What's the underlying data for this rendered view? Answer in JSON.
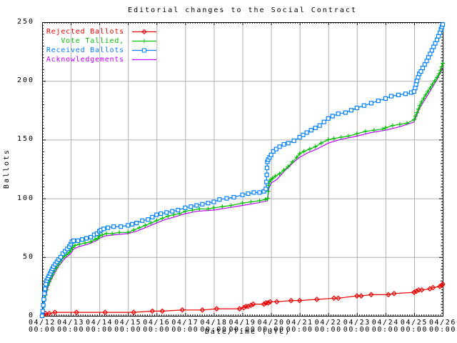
{
  "window": {
    "background": "#ffffff"
  },
  "chart_data": {
    "type": "line",
    "title": "Editorial changes to the Social Contract",
    "xlabel": "Date/Time (UTC)",
    "ylabel": "Ballots",
    "ylim": [
      0,
      250
    ],
    "y_ticks": [
      0,
      50,
      100,
      150,
      200,
      250
    ],
    "x_tick_labels_line1": [
      "04/12",
      "04/13",
      "04/14",
      "04/15",
      "04/16",
      "04/17",
      "04/18",
      "04/19",
      "04/20",
      "04/21",
      "04/22",
      "04/23",
      "04/24",
      "04/25",
      "04/26"
    ],
    "x_tick_labels_line2": "00:00",
    "xlim_days_from_first_tick": [
      0,
      14
    ],
    "grid": true,
    "grid_color": "#b0b0b0",
    "border_color": "#000000",
    "legend_position": "top-left-inside",
    "legend_order": [
      "Rejected Ballots",
      "Vote Tallied,",
      "Received Ballots",
      "Acknowledgements"
    ],
    "series": [
      {
        "name": "Rejected Ballots",
        "color": "#ee0000",
        "marker": "diamond",
        "points": [
          [
            0,
            0
          ],
          [
            0.06,
            1
          ],
          [
            0.12,
            2
          ],
          [
            0.25,
            2
          ],
          [
            0.45,
            3
          ],
          [
            1.2,
            3
          ],
          [
            2.2,
            3
          ],
          [
            3.2,
            3
          ],
          [
            3.85,
            4
          ],
          [
            4.2,
            4
          ],
          [
            4.9,
            5
          ],
          [
            5.6,
            5
          ],
          [
            6.1,
            6
          ],
          [
            6.9,
            6
          ],
          [
            7.05,
            7
          ],
          [
            7.12,
            8
          ],
          [
            7.2,
            8
          ],
          [
            7.3,
            9
          ],
          [
            7.38,
            10
          ],
          [
            7.75,
            10
          ],
          [
            7.82,
            11
          ],
          [
            7.9,
            11
          ],
          [
            7.97,
            12
          ],
          [
            8.2,
            12
          ],
          [
            8.7,
            13
          ],
          [
            9.0,
            13
          ],
          [
            9.6,
            14
          ],
          [
            10.2,
            15
          ],
          [
            10.35,
            15
          ],
          [
            11.0,
            17
          ],
          [
            11.15,
            17
          ],
          [
            11.5,
            18
          ],
          [
            12.1,
            18
          ],
          [
            12.3,
            19
          ],
          [
            13.0,
            20
          ],
          [
            13.08,
            21
          ],
          [
            13.16,
            22
          ],
          [
            13.27,
            22
          ],
          [
            13.55,
            23
          ],
          [
            13.66,
            24
          ],
          [
            13.9,
            25
          ],
          [
            13.97,
            26
          ],
          [
            14.0,
            27
          ]
        ]
      },
      {
        "name": "Vote Tallied,",
        "color": "#00c000",
        "marker": "plus",
        "points": [
          [
            0,
            0
          ],
          [
            0.03,
            4
          ],
          [
            0.06,
            9
          ],
          [
            0.09,
            14
          ],
          [
            0.12,
            18
          ],
          [
            0.16,
            22
          ],
          [
            0.2,
            26
          ],
          [
            0.25,
            29
          ],
          [
            0.3,
            32
          ],
          [
            0.36,
            35
          ],
          [
            0.42,
            38
          ],
          [
            0.5,
            41
          ],
          [
            0.58,
            44
          ],
          [
            0.66,
            47
          ],
          [
            0.75,
            50
          ],
          [
            0.85,
            52
          ],
          [
            0.95,
            54
          ],
          [
            1.0,
            56
          ],
          [
            1.06,
            58
          ],
          [
            1.15,
            60
          ],
          [
            1.3,
            61
          ],
          [
            1.5,
            62
          ],
          [
            1.7,
            63
          ],
          [
            1.85,
            65
          ],
          [
            1.95,
            66
          ],
          [
            2.0,
            68
          ],
          [
            2.1,
            69
          ],
          [
            2.25,
            70
          ],
          [
            2.45,
            70
          ],
          [
            2.7,
            71
          ],
          [
            3.0,
            71
          ],
          [
            3.2,
            73
          ],
          [
            3.4,
            75
          ],
          [
            3.6,
            77
          ],
          [
            3.8,
            79
          ],
          [
            4.0,
            81
          ],
          [
            4.2,
            83
          ],
          [
            4.4,
            85
          ],
          [
            4.6,
            86
          ],
          [
            4.8,
            87
          ],
          [
            5.0,
            89
          ],
          [
            5.25,
            90
          ],
          [
            5.5,
            91
          ],
          [
            5.8,
            91
          ],
          [
            6.0,
            92
          ],
          [
            6.3,
            93
          ],
          [
            6.6,
            94
          ],
          [
            7.0,
            96
          ],
          [
            7.3,
            97
          ],
          [
            7.6,
            98
          ],
          [
            7.8,
            99
          ],
          [
            7.88,
            100
          ],
          [
            7.9,
            106
          ],
          [
            7.92,
            111
          ],
          [
            7.95,
            114
          ],
          [
            8.0,
            116
          ],
          [
            8.05,
            117
          ],
          [
            8.15,
            119
          ],
          [
            8.3,
            121
          ],
          [
            8.45,
            124
          ],
          [
            8.6,
            127
          ],
          [
            8.75,
            131
          ],
          [
            8.9,
            135
          ],
          [
            9.0,
            138
          ],
          [
            9.15,
            140
          ],
          [
            9.35,
            142
          ],
          [
            9.55,
            144
          ],
          [
            9.75,
            147
          ],
          [
            10.0,
            150
          ],
          [
            10.2,
            151
          ],
          [
            10.45,
            152
          ],
          [
            10.7,
            153
          ],
          [
            11.0,
            155
          ],
          [
            11.3,
            157
          ],
          [
            11.6,
            158
          ],
          [
            11.9,
            159
          ],
          [
            12.0,
            160
          ],
          [
            12.25,
            162
          ],
          [
            12.5,
            163
          ],
          [
            12.75,
            164
          ],
          [
            13.0,
            167
          ],
          [
            13.05,
            170
          ],
          [
            13.1,
            173
          ],
          [
            13.15,
            176
          ],
          [
            13.2,
            179
          ],
          [
            13.26,
            182
          ],
          [
            13.33,
            185
          ],
          [
            13.4,
            188
          ],
          [
            13.48,
            191
          ],
          [
            13.56,
            194
          ],
          [
            13.64,
            197
          ],
          [
            13.72,
            200
          ],
          [
            13.8,
            203
          ],
          [
            13.87,
            206
          ],
          [
            13.92,
            209
          ],
          [
            13.96,
            212
          ],
          [
            14.0,
            215
          ]
        ]
      },
      {
        "name": "Received Ballots",
        "color": "#0080ff",
        "marker": "square",
        "points": [
          [
            0,
            0
          ],
          [
            0.02,
            4
          ],
          [
            0.04,
            9
          ],
          [
            0.06,
            14
          ],
          [
            0.08,
            19
          ],
          [
            0.1,
            23
          ],
          [
            0.13,
            27
          ],
          [
            0.16,
            30
          ],
          [
            0.2,
            32
          ],
          [
            0.24,
            34
          ],
          [
            0.28,
            36
          ],
          [
            0.32,
            38
          ],
          [
            0.36,
            40
          ],
          [
            0.4,
            42
          ],
          [
            0.46,
            44
          ],
          [
            0.52,
            46
          ],
          [
            0.58,
            48
          ],
          [
            0.65,
            50
          ],
          [
            0.72,
            53
          ],
          [
            0.8,
            55
          ],
          [
            0.88,
            57
          ],
          [
            0.95,
            59
          ],
          [
            1.0,
            61
          ],
          [
            1.04,
            63
          ],
          [
            1.1,
            64
          ],
          [
            1.25,
            64
          ],
          [
            1.4,
            65
          ],
          [
            1.55,
            66
          ],
          [
            1.7,
            67
          ],
          [
            1.82,
            69
          ],
          [
            1.92,
            70
          ],
          [
            2.0,
            72
          ],
          [
            2.06,
            73
          ],
          [
            2.15,
            74
          ],
          [
            2.3,
            75
          ],
          [
            2.5,
            76
          ],
          [
            2.75,
            76
          ],
          [
            3.0,
            77
          ],
          [
            3.15,
            78
          ],
          [
            3.3,
            79
          ],
          [
            3.5,
            81
          ],
          [
            3.7,
            82
          ],
          [
            3.85,
            84
          ],
          [
            4.0,
            86
          ],
          [
            4.15,
            87
          ],
          [
            4.35,
            88
          ],
          [
            4.55,
            89
          ],
          [
            4.75,
            90
          ],
          [
            5.0,
            92
          ],
          [
            5.2,
            93
          ],
          [
            5.4,
            94
          ],
          [
            5.6,
            95
          ],
          [
            5.8,
            96
          ],
          [
            6.0,
            97
          ],
          [
            6.2,
            99
          ],
          [
            6.45,
            100
          ],
          [
            6.7,
            101
          ],
          [
            7.0,
            103
          ],
          [
            7.2,
            104
          ],
          [
            7.4,
            105
          ],
          [
            7.6,
            105
          ],
          [
            7.75,
            106
          ],
          [
            7.82,
            108
          ],
          [
            7.84,
            114
          ],
          [
            7.85,
            120
          ],
          [
            7.86,
            126
          ],
          [
            7.87,
            131
          ],
          [
            7.9,
            133
          ],
          [
            7.95,
            135
          ],
          [
            8.0,
            137
          ],
          [
            8.08,
            140
          ],
          [
            8.18,
            142
          ],
          [
            8.3,
            144
          ],
          [
            8.45,
            146
          ],
          [
            8.6,
            147
          ],
          [
            8.8,
            149
          ],
          [
            9.0,
            152
          ],
          [
            9.12,
            154
          ],
          [
            9.25,
            156
          ],
          [
            9.4,
            158
          ],
          [
            9.55,
            160
          ],
          [
            9.7,
            162
          ],
          [
            9.85,
            165
          ],
          [
            10.0,
            168
          ],
          [
            10.15,
            170
          ],
          [
            10.35,
            172
          ],
          [
            10.6,
            173
          ],
          [
            10.8,
            175
          ],
          [
            11.0,
            177
          ],
          [
            11.25,
            179
          ],
          [
            11.5,
            181
          ],
          [
            11.75,
            183
          ],
          [
            12.0,
            185
          ],
          [
            12.2,
            187
          ],
          [
            12.45,
            188
          ],
          [
            12.7,
            189
          ],
          [
            12.9,
            190
          ],
          [
            13.0,
            191
          ],
          [
            13.04,
            194
          ],
          [
            13.07,
            197
          ],
          [
            13.1,
            200
          ],
          [
            13.14,
            203
          ],
          [
            13.18,
            206
          ],
          [
            13.24,
            208
          ],
          [
            13.3,
            211
          ],
          [
            13.37,
            214
          ],
          [
            13.44,
            217
          ],
          [
            13.5,
            220
          ],
          [
            13.56,
            223
          ],
          [
            13.62,
            226
          ],
          [
            13.68,
            229
          ],
          [
            13.74,
            232
          ],
          [
            13.8,
            235
          ],
          [
            13.85,
            238
          ],
          [
            13.9,
            241
          ],
          [
            13.94,
            244
          ],
          [
            13.97,
            246
          ],
          [
            14.0,
            248
          ]
        ]
      },
      {
        "name": "Acknowledgements",
        "color": "#c000ff",
        "marker": "none",
        "points": [
          [
            0,
            0
          ],
          [
            0.05,
            6
          ],
          [
            0.1,
            14
          ],
          [
            0.2,
            24
          ],
          [
            0.3,
            30
          ],
          [
            0.45,
            37
          ],
          [
            0.6,
            43
          ],
          [
            0.8,
            49
          ],
          [
            1.0,
            53
          ],
          [
            1.1,
            57
          ],
          [
            1.3,
            59
          ],
          [
            1.6,
            61
          ],
          [
            1.9,
            64
          ],
          [
            2.0,
            66
          ],
          [
            2.2,
            68
          ],
          [
            2.5,
            69
          ],
          [
            3.0,
            70
          ],
          [
            3.3,
            72
          ],
          [
            3.7,
            76
          ],
          [
            4.0,
            79
          ],
          [
            4.3,
            82
          ],
          [
            4.6,
            84
          ],
          [
            5.0,
            87
          ],
          [
            5.4,
            89
          ],
          [
            6.0,
            90
          ],
          [
            6.5,
            92
          ],
          [
            7.0,
            94
          ],
          [
            7.5,
            96
          ],
          [
            7.88,
            98
          ],
          [
            7.92,
            108
          ],
          [
            8.0,
            113
          ],
          [
            8.2,
            116
          ],
          [
            8.5,
            124
          ],
          [
            8.8,
            131
          ],
          [
            9.0,
            135
          ],
          [
            9.3,
            139
          ],
          [
            9.6,
            142
          ],
          [
            10.0,
            147
          ],
          [
            10.4,
            150
          ],
          [
            11.0,
            153
          ],
          [
            11.5,
            156
          ],
          [
            12.0,
            158
          ],
          [
            12.5,
            161
          ],
          [
            13.0,
            165
          ],
          [
            13.1,
            171
          ],
          [
            13.2,
            177
          ],
          [
            13.35,
            183
          ],
          [
            13.5,
            189
          ],
          [
            13.65,
            195
          ],
          [
            13.8,
            201
          ],
          [
            13.92,
            207
          ],
          [
            14.0,
            211
          ]
        ]
      }
    ]
  }
}
